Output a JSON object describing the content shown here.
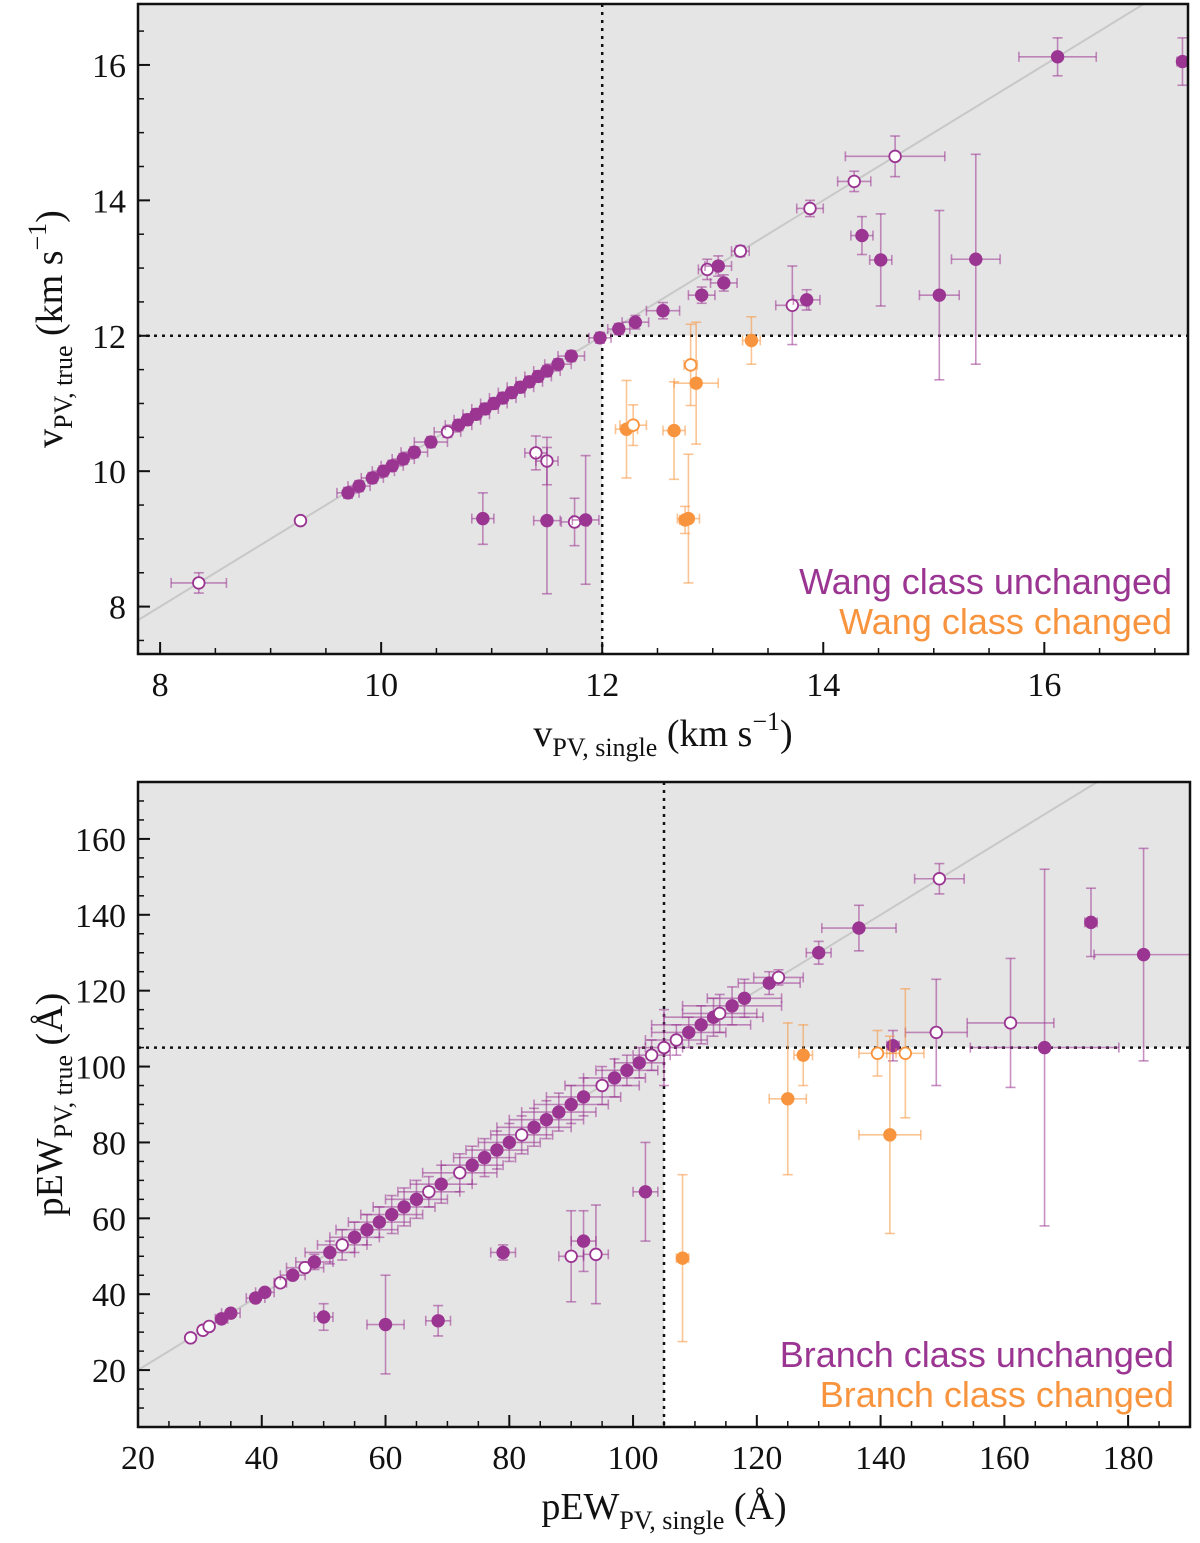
{
  "colors": {
    "unchanged": "#9b3592",
    "changed": "#f8943e",
    "shade": "#e5e5e5",
    "identity": "#c8c8c8"
  },
  "chart_data": [
    {
      "type": "scatter",
      "xlim": [
        7.8,
        17.3
      ],
      "ylim": [
        7.3,
        16.9
      ],
      "xticks": [
        8,
        10,
        12,
        14,
        16
      ],
      "yticks": [
        8,
        10,
        12,
        14,
        16
      ],
      "x_minor_step": 0.5,
      "y_minor_step": 0.5,
      "threshold": {
        "x": 12,
        "y": 12
      },
      "shaded_region": "all except x>12 and y<12",
      "xlabel": {
        "main": "v",
        "sub": "PV, single",
        "unit": " (km s",
        "exp": "−1",
        "close": ")"
      },
      "ylabel": {
        "main": "v",
        "sub": "PV, true",
        "unit": " (km s",
        "exp": "−1",
        "close": ")"
      },
      "legend": [
        {
          "text": "Wang class unchanged",
          "series": "unchanged"
        },
        {
          "text": "Wang class changed",
          "series": "changed"
        }
      ],
      "legend_position": "bottom-right",
      "identity_line": true,
      "grid": false,
      "series": [
        {
          "key": "unchanged",
          "points": [
            [
              8.35,
              8.35,
              0.25,
              0.15,
              false
            ],
            [
              9.27,
              9.27,
              0,
              0,
              false
            ],
            [
              9.7,
              9.68,
              0.1,
              0.08,
              true
            ],
            [
              9.8,
              9.78,
              0.1,
              0.08,
              true
            ],
            [
              9.92,
              9.9,
              0.1,
              0.08,
              true
            ],
            [
              10.02,
              10.0,
              0.1,
              0.08,
              true
            ],
            [
              10.1,
              10.08,
              0.1,
              0.08,
              true
            ],
            [
              10.2,
              10.18,
              0.1,
              0.08,
              true
            ],
            [
              10.3,
              10.28,
              0.12,
              0.08,
              true
            ],
            [
              10.45,
              10.43,
              0.15,
              0.08,
              true
            ],
            [
              10.6,
              10.58,
              0.12,
              0.08,
              false
            ],
            [
              10.7,
              10.68,
              0.12,
              0.08,
              true
            ],
            [
              10.78,
              10.76,
              0.12,
              0.08,
              true
            ],
            [
              10.86,
              10.84,
              0.12,
              0.08,
              true
            ],
            [
              10.94,
              10.92,
              0.12,
              0.08,
              true
            ],
            [
              11.02,
              11.0,
              0.12,
              0.08,
              true
            ],
            [
              11.1,
              11.08,
              0.12,
              0.08,
              true
            ],
            [
              11.18,
              11.16,
              0.12,
              0.08,
              true
            ],
            [
              11.26,
              11.24,
              0.12,
              0.08,
              true
            ],
            [
              11.34,
              11.32,
              0.12,
              0.08,
              true
            ],
            [
              11.42,
              11.4,
              0.12,
              0.08,
              true
            ],
            [
              11.5,
              11.48,
              0.12,
              0.08,
              true
            ],
            [
              11.6,
              11.58,
              0.12,
              0.08,
              true
            ],
            [
              11.72,
              11.7,
              0.12,
              0.08,
              true
            ],
            [
              11.98,
              11.97,
              0.1,
              0.08,
              true
            ],
            [
              11.4,
              10.27,
              0.1,
              0.25,
              false
            ],
            [
              11.5,
              10.15,
              0.1,
              0.35,
              false
            ],
            [
              10.92,
              9.3,
              0.1,
              0.38,
              true
            ],
            [
              11.5,
              9.27,
              0.12,
              1.08,
              true
            ],
            [
              11.75,
              9.25,
              0.12,
              0.35,
              false
            ],
            [
              11.85,
              9.28,
              0.12,
              0.95,
              true
            ],
            [
              12.15,
              12.1,
              0.1,
              0.08,
              true
            ],
            [
              12.3,
              12.2,
              0.12,
              0.1,
              true
            ],
            [
              12.55,
              12.37,
              0.15,
              0.12,
              true
            ],
            [
              12.9,
              12.6,
              0.12,
              0.12,
              true
            ],
            [
              13.1,
              12.78,
              0.12,
              0.12,
              true
            ],
            [
              12.95,
              12.98,
              0.08,
              0.15,
              false
            ],
            [
              13.05,
              13.03,
              0.12,
              0.15,
              true
            ],
            [
              13.25,
              13.25,
              0.08,
              0.08,
              false
            ],
            [
              13.72,
              12.45,
              0.15,
              0.58,
              false
            ],
            [
              13.85,
              12.53,
              0.12,
              0.15,
              true
            ],
            [
              13.88,
              13.88,
              0.12,
              0.12,
              false
            ],
            [
              14.28,
              14.28,
              0.15,
              0.15,
              false
            ],
            [
              14.35,
              13.48,
              0.1,
              0.28,
              true
            ],
            [
              14.52,
              13.12,
              0.1,
              0.68,
              true
            ],
            [
              14.65,
              14.65,
              0.45,
              0.3,
              false
            ],
            [
              15.05,
              12.6,
              0.18,
              1.25,
              true
            ],
            [
              15.38,
              13.13,
              0.22,
              1.55,
              true
            ],
            [
              16.12,
              16.12,
              0.35,
              0.28,
              true
            ],
            [
              17.25,
              16.05,
              0.05,
              0.35,
              true
            ]
          ]
        },
        {
          "key": "changed",
          "points": [
            [
              12.22,
              10.62,
              0.1,
              0.72,
              true
            ],
            [
              12.28,
              10.68,
              0.12,
              0.3,
              false
            ],
            [
              12.65,
              10.6,
              0.1,
              0.72,
              true
            ],
            [
              12.78,
              9.3,
              0.1,
              0.95,
              true
            ],
            [
              12.75,
              9.28,
              0.05,
              0.2,
              true
            ],
            [
              12.8,
              11.57,
              0.06,
              0.6,
              false
            ],
            [
              12.85,
              11.3,
              0.2,
              0.9,
              true
            ],
            [
              13.35,
              11.93,
              0.08,
              0.35,
              true
            ]
          ]
        }
      ]
    },
    {
      "type": "scatter",
      "xlim": [
        20,
        190
      ],
      "ylim": [
        5,
        175
      ],
      "xticks": [
        20,
        40,
        60,
        80,
        100,
        120,
        140,
        160,
        180
      ],
      "yticks": [
        20,
        40,
        60,
        80,
        100,
        120,
        140,
        160
      ],
      "x_minor_step": 5,
      "y_minor_step": 5,
      "threshold": {
        "x": 105,
        "y": 105
      },
      "shaded_region": "all except x>105 and y<105",
      "xlabel": {
        "main": "pEW",
        "sub": "PV, single",
        "unit": " (Å)",
        "exp": "",
        "close": ""
      },
      "ylabel": {
        "main": "pEW",
        "sub": "PV, true",
        "unit": " (Å)",
        "exp": "",
        "close": ""
      },
      "legend": [
        {
          "text": "Branch class unchanged",
          "series": "unchanged"
        },
        {
          "text": "Branch class changed",
          "series": "changed"
        }
      ],
      "legend_position": "bottom-right",
      "identity_line": true,
      "grid": false,
      "series": [
        {
          "key": "unchanged",
          "points": [
            [
              28.5,
              28.5,
              0,
              0,
              false
            ],
            [
              30.5,
              30.5,
              0,
              0,
              false
            ],
            [
              31.5,
              31.5,
              0,
              0,
              false
            ],
            [
              33.5,
              33.5,
              1,
              0,
              true
            ],
            [
              35,
              35,
              1.5,
              0,
              true
            ],
            [
              39,
              39,
              1.5,
              0,
              true
            ],
            [
              40.5,
              40.5,
              1.5,
              0,
              true
            ],
            [
              43,
              43,
              1,
              0,
              false
            ],
            [
              45,
              45,
              2,
              0,
              true
            ],
            [
              47,
              47,
              3,
              0,
              false
            ],
            [
              48.5,
              48.5,
              3,
              2,
              true
            ],
            [
              51,
              51,
              4,
              3,
              true
            ],
            [
              53,
              53,
              4,
              4,
              false
            ],
            [
              55,
              55,
              4,
              4,
              true
            ],
            [
              57,
              57,
              5,
              4,
              true
            ],
            [
              59,
              59,
              5,
              4,
              true
            ],
            [
              61,
              61,
              5,
              5,
              true
            ],
            [
              63,
              63,
              5,
              5,
              true
            ],
            [
              65,
              65,
              5,
              5,
              true
            ],
            [
              67,
              67,
              5,
              4,
              false
            ],
            [
              69,
              69,
              5,
              5,
              true
            ],
            [
              72,
              72,
              6,
              5,
              false
            ],
            [
              74,
              74,
              5,
              5,
              true
            ],
            [
              76,
              76,
              5,
              5,
              true
            ],
            [
              78,
              78,
              5,
              5,
              true
            ],
            [
              80,
              80,
              5,
              5,
              true
            ],
            [
              82,
              82,
              5,
              5,
              false
            ],
            [
              84,
              84,
              6,
              5,
              true
            ],
            [
              86,
              86,
              6,
              5,
              true
            ],
            [
              88,
              88,
              6,
              5,
              true
            ],
            [
              90,
              90,
              6,
              5,
              true
            ],
            [
              92,
              92,
              6,
              5,
              true
            ],
            [
              95,
              95,
              6,
              5,
              false
            ],
            [
              97,
              97,
              5,
              5,
              true
            ],
            [
              99,
              99,
              5,
              4,
              true
            ],
            [
              101,
              101,
              4,
              4,
              true
            ],
            [
              103,
              103,
              3,
              4,
              false
            ],
            [
              105,
              105,
              3,
              10,
              false
            ],
            [
              50,
              34,
              1.5,
              3.5,
              true
            ],
            [
              60,
              32,
              3,
              13,
              true
            ],
            [
              68.5,
              33,
              2,
              4,
              true
            ],
            [
              79,
              51,
              2,
              2,
              true
            ],
            [
              90,
              50,
              2,
              12,
              false
            ],
            [
              92,
              54,
              2,
              8,
              true
            ],
            [
              94,
              50.5,
              2,
              13,
              false
            ],
            [
              102,
              67,
              2,
              13,
              true
            ],
            [
              107,
              107,
              5,
              4,
              false
            ],
            [
              109,
              109,
              6,
              4,
              true
            ],
            [
              111,
              111,
              8,
              5,
              true
            ],
            [
              113,
              113,
              8,
              5,
              true
            ],
            [
              114,
              114,
              6,
              5,
              false
            ],
            [
              116,
              116,
              8,
              5,
              true
            ],
            [
              118,
              118,
              6,
              5,
              true
            ],
            [
              122,
              122,
              5,
              3,
              true
            ],
            [
              123.5,
              123.5,
              4,
              2,
              false
            ],
            [
              130,
              130,
              2,
              3,
              true
            ],
            [
              136.5,
              136.5,
              6,
              6,
              true
            ],
            [
              149.5,
              149.5,
              4,
              4,
              false
            ],
            [
              142,
              105.5,
              1,
              4,
              true
            ],
            [
              149,
              109,
              5,
              14,
              false
            ],
            [
              161,
              111.5,
              7,
              17,
              false
            ],
            [
              166.5,
              105,
              12,
              47,
              true
            ],
            [
              174,
              138,
              1,
              9,
              true
            ],
            [
              182.5,
              129.5,
              8,
              28,
              true
            ]
          ]
        },
        {
          "key": "changed",
          "points": [
            [
              108,
              49.5,
              1,
              22,
              true
            ],
            [
              125,
              91.5,
              3,
              20,
              true
            ],
            [
              127.5,
              103,
              1.5,
              8,
              true
            ],
            [
              139.5,
              103.5,
              3,
              6,
              false
            ],
            [
              141.5,
              82,
              5,
              26,
              true
            ],
            [
              144,
              103.5,
              3,
              17,
              false
            ]
          ]
        }
      ]
    }
  ]
}
